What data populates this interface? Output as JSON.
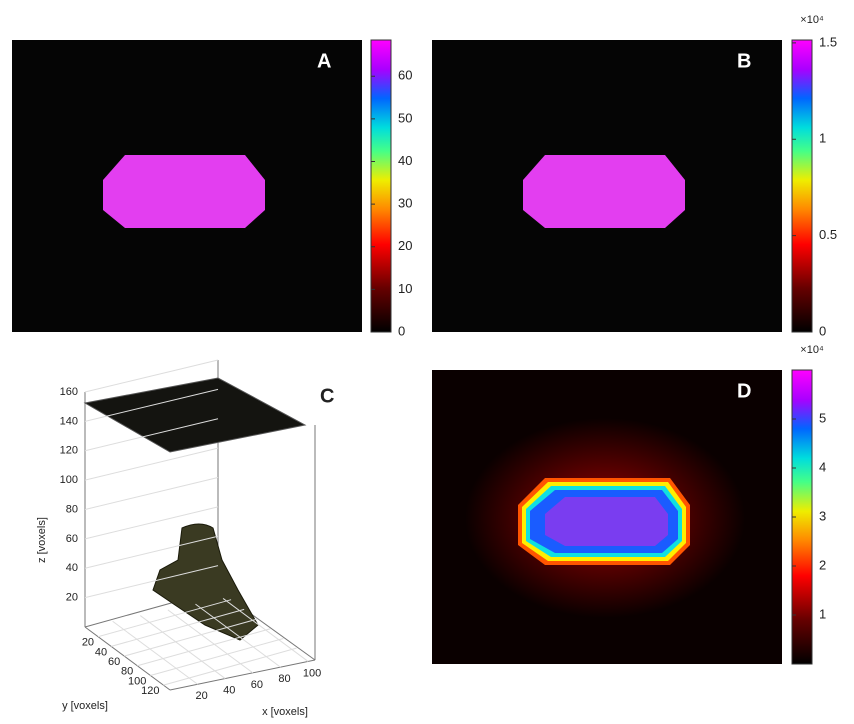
{
  "panels": [
    {
      "label": "A",
      "colorbar": {
        "clim": [
          0,
          68.5
        ],
        "ticks": [
          0,
          10,
          20,
          30,
          40,
          50,
          60
        ]
      }
    },
    {
      "label": "B",
      "colorbar": {
        "clim": [
          0,
          1.515
        ],
        "ticks": [
          0,
          0.5,
          1,
          1.5
        ],
        "exponent": "×10⁴"
      }
    },
    {
      "label": "C",
      "axes": {
        "zlabel": "z [voxels]",
        "ylabel": "y [voxels]",
        "xlabel": "x [voxels]",
        "zlim": [
          0,
          160
        ],
        "zticks": [
          20,
          40,
          60,
          80,
          100,
          120,
          140,
          160
        ],
        "ylim": [
          0,
          130
        ],
        "yticks": [
          20,
          40,
          60,
          80,
          100,
          120
        ],
        "xlim": [
          0,
          105
        ],
        "xticks": [
          20,
          40,
          60,
          80,
          100
        ]
      }
    },
    {
      "label": "D",
      "colorbar": {
        "clim": [
          0,
          6
        ],
        "ticks": [
          1,
          2,
          3,
          4,
          5
        ],
        "exponent": "×10⁴"
      }
    }
  ]
}
